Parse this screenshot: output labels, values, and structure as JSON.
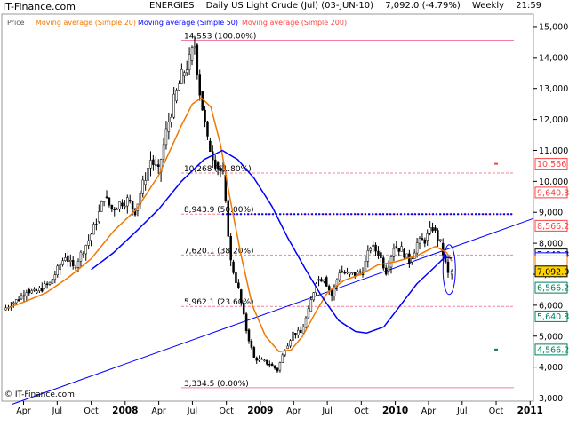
{
  "header": {
    "brand": "IT-Finance.com",
    "category": "ENERGIES",
    "instrument": "Daily US Light Crude (Jul) (03-JUN-10)",
    "last_change": "7,092.0 (-4.79%)",
    "timeframe": "Weekly",
    "time": "21:59"
  },
  "chart_data": {
    "type": "candlestick",
    "legend": [
      {
        "label": "Price",
        "color": "#000000"
      },
      {
        "label": "Moving average (Simple 20)",
        "color": "#f07800"
      },
      {
        "label": "Moving average (Simple 50)",
        "color": "#0000ff"
      },
      {
        "label": "Moving average (Simple 200)",
        "color": "#ff4040"
      }
    ],
    "watermark": "© IT-Finance.com",
    "y_axis": {
      "position": "right",
      "range": [
        2900,
        15400
      ],
      "ticks": [
        "3,000",
        "4,000",
        "5,000",
        "6,000",
        "7,000",
        "8,000",
        "9,000",
        "10,000",
        "11,000",
        "12,000",
        "13,000",
        "14,000",
        "15,000"
      ]
    },
    "x_axis": {
      "range": [
        "2007-02-01",
        "2011-01-10"
      ],
      "ticks": [
        {
          "label": "Apr",
          "date": "2007-04-01"
        },
        {
          "label": "Jul",
          "date": "2007-07-01"
        },
        {
          "label": "Oct",
          "date": "2007-10-01"
        },
        {
          "label": "2008",
          "date": "2008-01-01"
        },
        {
          "label": "Apr",
          "date": "2008-04-01"
        },
        {
          "label": "Jul",
          "date": "2008-07-01"
        },
        {
          "label": "Oct",
          "date": "2008-10-01"
        },
        {
          "label": "2009",
          "date": "2009-01-01"
        },
        {
          "label": "Apr",
          "date": "2009-04-01"
        },
        {
          "label": "Jul",
          "date": "2009-07-01"
        },
        {
          "label": "Oct",
          "date": "2009-10-01"
        },
        {
          "label": "2010",
          "date": "2010-01-01"
        },
        {
          "label": "Apr",
          "date": "2010-04-01"
        },
        {
          "label": "Jul",
          "date": "2010-07-01"
        },
        {
          "label": "Oct",
          "date": "2010-10-01"
        },
        {
          "label": "2011",
          "date": "2011-01-01"
        }
      ]
    },
    "fib_levels": [
      {
        "value": 14553,
        "label": "14,553 (100.00%)"
      },
      {
        "value": 10268,
        "label": "10,268 (61.80%)"
      },
      {
        "value": 8943.9,
        "label": "8,943.9 (50.00%)"
      },
      {
        "value": 7620.1,
        "label": "7,620.1 (38.20%)"
      },
      {
        "value": 5962.1,
        "label": "5,962.1 (23.60%)"
      },
      {
        "value": 3334.5,
        "label": "3,334.5 (0.00%)"
      }
    ],
    "value_tags": [
      {
        "value": 10566,
        "label": "10,566",
        "color": "#ff4040",
        "fill": "#ffffff"
      },
      {
        "value": 9640.8,
        "label": "9,640.8",
        "color": "#ff4040",
        "fill": "#ffffff"
      },
      {
        "value": 8566.2,
        "label": "8,566.2",
        "color": "#ff4040",
        "fill": "#ffffff"
      },
      {
        "value": 7640.8,
        "label": "7,640.8",
        "color": "#000000",
        "fill": "#ffffff"
      },
      {
        "value": 7520,
        "label": "",
        "color": "#0000ff",
        "fill": "#ffffff"
      },
      {
        "value": 7420,
        "label": "",
        "color": "#f07800",
        "fill": "#ffffff"
      },
      {
        "value": 7092.0,
        "label": "7,092.0",
        "color": "#000000",
        "fill": "#ffd400"
      },
      {
        "value": 6566.2,
        "label": "6,566.2",
        "color": "#008060",
        "fill": "#ffffff"
      },
      {
        "value": 5640.8,
        "label": "5,640.8",
        "color": "#008060",
        "fill": "#ffffff"
      },
      {
        "value": 4566.2,
        "label": "4,566.2",
        "color": "#008060",
        "fill": "#ffffff"
      }
    ],
    "markers": [
      {
        "date": "2010-10-01",
        "value": 10566,
        "color": "#ff4040"
      },
      {
        "date": "2010-10-01",
        "value": 4566.2,
        "color": "#008060"
      }
    ],
    "horizontal_line": {
      "value": 8943.9,
      "color": "#0000ff",
      "style": "dotted"
    },
    "trendline": {
      "color": "#0000ff",
      "points": [
        {
          "date": "2007-03-01",
          "value": 2800
        },
        {
          "date": "2011-01-10",
          "value": 8800
        }
      ]
    },
    "highlight_ellipse": {
      "center_date": "2010-05-27",
      "center_value": 7150,
      "color": "#0000ff"
    },
    "price_weekly": [
      {
        "date": "2007-02-05",
        "close": 5850
      },
      {
        "date": "2007-02-26",
        "close": 6050
      },
      {
        "date": "2007-03-19",
        "close": 6200
      },
      {
        "date": "2007-04-09",
        "close": 6500
      },
      {
        "date": "2007-04-30",
        "close": 6400
      },
      {
        "date": "2007-05-21",
        "close": 6550
      },
      {
        "date": "2007-06-11",
        "close": 6700
      },
      {
        "date": "2007-07-02",
        "close": 7150
      },
      {
        "date": "2007-07-23",
        "close": 7600
      },
      {
        "date": "2007-08-13",
        "close": 7200
      },
      {
        "date": "2007-09-03",
        "close": 7650
      },
      {
        "date": "2007-09-24",
        "close": 8100
      },
      {
        "date": "2007-10-15",
        "close": 8700
      },
      {
        "date": "2007-11-05",
        "close": 9500
      },
      {
        "date": "2007-11-26",
        "close": 9100
      },
      {
        "date": "2007-12-17",
        "close": 9300
      },
      {
        "date": "2008-01-07",
        "close": 9400
      },
      {
        "date": "2008-01-28",
        "close": 9050
      },
      {
        "date": "2008-02-18",
        "close": 9900
      },
      {
        "date": "2008-03-10",
        "close": 10700
      },
      {
        "date": "2008-03-31",
        "close": 10300
      },
      {
        "date": "2008-04-21",
        "close": 11600
      },
      {
        "date": "2008-05-12",
        "close": 12600
      },
      {
        "date": "2008-06-02",
        "close": 13400
      },
      {
        "date": "2008-06-23",
        "close": 13900
      },
      {
        "date": "2008-07-07",
        "close": 14400
      },
      {
        "date": "2008-07-21",
        "close": 12900
      },
      {
        "date": "2008-08-11",
        "close": 11300
      },
      {
        "date": "2008-09-01",
        "close": 10600
      },
      {
        "date": "2008-09-22",
        "close": 10200
      },
      {
        "date": "2008-10-13",
        "close": 7400
      },
      {
        "date": "2008-11-03",
        "close": 6500
      },
      {
        "date": "2008-11-24",
        "close": 5200
      },
      {
        "date": "2008-12-15",
        "close": 4300
      },
      {
        "date": "2009-01-05",
        "close": 4200
      },
      {
        "date": "2009-01-26",
        "close": 4100
      },
      {
        "date": "2009-02-16",
        "close": 3900
      },
      {
        "date": "2009-03-09",
        "close": 4600
      },
      {
        "date": "2009-03-30",
        "close": 5100
      },
      {
        "date": "2009-04-20",
        "close": 5100
      },
      {
        "date": "2009-05-11",
        "close": 5800
      },
      {
        "date": "2009-06-01",
        "close": 6800
      },
      {
        "date": "2009-06-22",
        "close": 6900
      },
      {
        "date": "2009-07-13",
        "close": 6300
      },
      {
        "date": "2009-08-03",
        "close": 7100
      },
      {
        "date": "2009-08-24",
        "close": 7000
      },
      {
        "date": "2009-09-14",
        "close": 7000
      },
      {
        "date": "2009-10-05",
        "close": 7100
      },
      {
        "date": "2009-10-26",
        "close": 7900
      },
      {
        "date": "2009-11-16",
        "close": 7700
      },
      {
        "date": "2009-12-07",
        "close": 7100
      },
      {
        "date": "2009-12-28",
        "close": 7900
      },
      {
        "date": "2010-01-18",
        "close": 7800
      },
      {
        "date": "2010-02-08",
        "close": 7400
      },
      {
        "date": "2010-03-01",
        "close": 8000
      },
      {
        "date": "2010-03-22",
        "close": 8100
      },
      {
        "date": "2010-04-12",
        "close": 8500
      },
      {
        "date": "2010-05-03",
        "close": 8000
      },
      {
        "date": "2010-05-24",
        "close": 7000
      },
      {
        "date": "2010-06-03",
        "close": 7092
      }
    ],
    "ma20": [
      [
        "2007-02-15",
        5900
      ],
      [
        "2007-04-01",
        6100
      ],
      [
        "2007-06-01",
        6400
      ],
      [
        "2007-08-01",
        6900
      ],
      [
        "2007-10-01",
        7500
      ],
      [
        "2007-12-01",
        8400
      ],
      [
        "2008-02-01",
        9100
      ],
      [
        "2008-04-01",
        10200
      ],
      [
        "2008-06-01",
        11800
      ],
      [
        "2008-07-01",
        12500
      ],
      [
        "2008-07-25",
        12700
      ],
      [
        "2008-08-20",
        12400
      ],
      [
        "2008-09-15",
        11200
      ],
      [
        "2008-10-10",
        9500
      ],
      [
        "2008-11-10",
        7600
      ],
      [
        "2008-12-10",
        6000
      ],
      [
        "2009-01-15",
        5000
      ],
      [
        "2009-02-20",
        4500
      ],
      [
        "2009-03-25",
        4550
      ],
      [
        "2009-04-25",
        5000
      ],
      [
        "2009-06-01",
        5800
      ],
      [
        "2009-07-01",
        6400
      ],
      [
        "2009-08-15",
        6800
      ],
      [
        "2009-10-01",
        7000
      ],
      [
        "2009-11-15",
        7300
      ],
      [
        "2010-01-01",
        7400
      ],
      [
        "2010-03-01",
        7600
      ],
      [
        "2010-04-20",
        7900
      ],
      [
        "2010-05-20",
        7700
      ],
      [
        "2010-06-03",
        7420
      ]
    ],
    "ma50": [
      [
        "2007-10-01",
        7150
      ],
      [
        "2007-12-01",
        7700
      ],
      [
        "2008-02-01",
        8400
      ],
      [
        "2008-04-01",
        9100
      ],
      [
        "2008-06-01",
        10000
      ],
      [
        "2008-08-01",
        10700
      ],
      [
        "2008-09-20",
        11000
      ],
      [
        "2008-11-01",
        10700
      ],
      [
        "2008-12-15",
        10100
      ],
      [
        "2009-02-01",
        9200
      ],
      [
        "2009-03-15",
        8200
      ],
      [
        "2009-05-01",
        7200
      ],
      [
        "2009-06-15",
        6300
      ],
      [
        "2009-08-01",
        5500
      ],
      [
        "2009-09-15",
        5150
      ],
      [
        "2009-10-15",
        5100
      ],
      [
        "2009-12-01",
        5300
      ],
      [
        "2010-01-15",
        6000
      ],
      [
        "2010-03-01",
        6700
      ],
      [
        "2010-04-15",
        7200
      ],
      [
        "2010-05-15",
        7550
      ],
      [
        "2010-06-03",
        7520
      ]
    ]
  }
}
